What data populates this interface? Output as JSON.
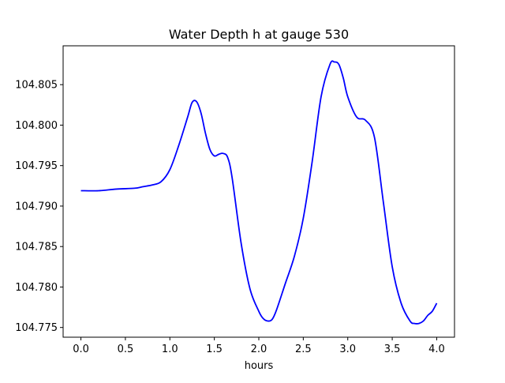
{
  "chart_data": {
    "type": "line",
    "title": "Water Depth h at gauge 530",
    "xlabel": "hours",
    "ylabel": "",
    "xlim": [
      -0.2,
      4.2
    ],
    "ylim": [
      104.7738,
      104.8098
    ],
    "xticks": [
      0.0,
      0.5,
      1.0,
      1.5,
      2.0,
      2.5,
      3.0,
      3.5,
      4.0
    ],
    "xtick_labels": [
      "0.0",
      "0.5",
      "1.0",
      "1.5",
      "2.0",
      "2.5",
      "3.0",
      "3.5",
      "4.0"
    ],
    "yticks": [
      104.775,
      104.78,
      104.785,
      104.79,
      104.795,
      104.8,
      104.805
    ],
    "ytick_labels": [
      "104.775",
      "104.780",
      "104.785",
      "104.790",
      "104.795",
      "104.800",
      "104.805"
    ],
    "grid": false,
    "series": [
      {
        "color": "#0000ff",
        "x": [
          0.0,
          0.2,
          0.4,
          0.6,
          0.7,
          0.8,
          0.9,
          1.0,
          1.1,
          1.2,
          1.25,
          1.3,
          1.35,
          1.4,
          1.45,
          1.5,
          1.55,
          1.6,
          1.65,
          1.7,
          1.8,
          1.9,
          2.0,
          2.05,
          2.1,
          2.15,
          2.2,
          2.3,
          2.4,
          2.5,
          2.6,
          2.7,
          2.8,
          2.85,
          2.9,
          2.95,
          3.0,
          3.1,
          3.2,
          3.3,
          3.4,
          3.5,
          3.6,
          3.7,
          3.75,
          3.8,
          3.85,
          3.9,
          3.95,
          4.0
        ],
        "y": [
          104.7919,
          104.7919,
          104.7921,
          104.7922,
          104.7924,
          104.7926,
          104.793,
          104.7945,
          104.7975,
          104.801,
          104.8028,
          104.8029,
          104.8015,
          104.799,
          104.797,
          104.7962,
          104.7964,
          104.7965,
          104.796,
          104.7935,
          104.7855,
          104.7798,
          104.777,
          104.7761,
          104.7758,
          104.776,
          104.7772,
          104.7805,
          104.7838,
          104.7885,
          104.7955,
          104.8035,
          104.8075,
          104.8078,
          104.8075,
          104.8058,
          104.8035,
          104.801,
          104.8006,
          104.7985,
          104.7905,
          104.7825,
          104.778,
          104.7758,
          104.7755,
          104.7755,
          104.7758,
          104.7765,
          104.777,
          104.778
        ]
      }
    ]
  }
}
